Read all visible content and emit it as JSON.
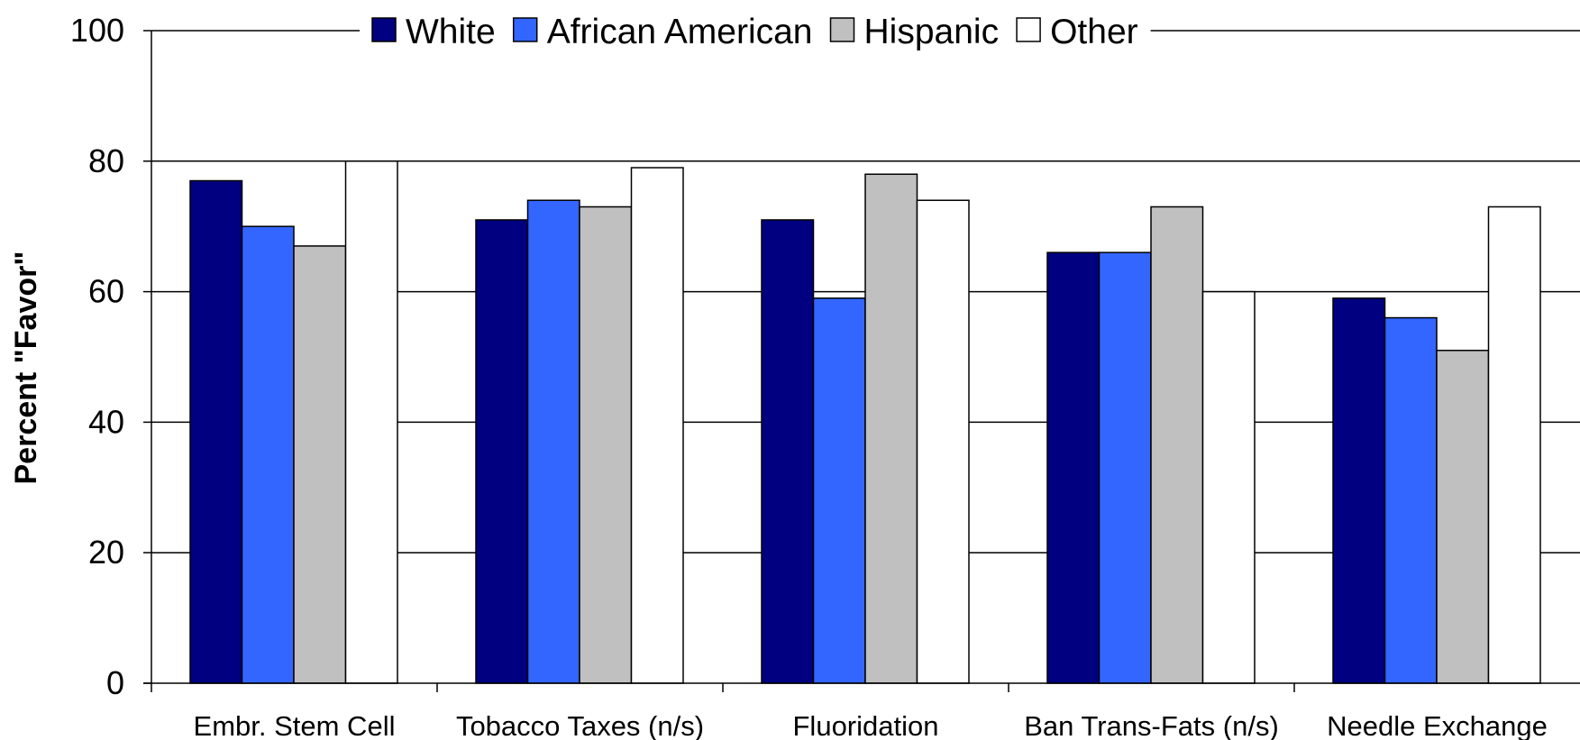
{
  "chart_data": {
    "type": "bar",
    "ylabel": "Percent \"Favor\"",
    "ylim": [
      0,
      100
    ],
    "yticks": [
      0,
      20,
      40,
      60,
      80,
      100
    ],
    "grid": true,
    "legend_position": "top",
    "categories": [
      "Embr. Stem Cell",
      "Tobacco Taxes (n/s)",
      "Fluoridation",
      "Ban Trans-Fats (n/s)",
      "Needle Exchange"
    ],
    "series": [
      {
        "name": "White",
        "color": "#000080",
        "values": [
          77,
          71,
          71,
          66,
          59
        ]
      },
      {
        "name": "African American",
        "color": "#3366FF",
        "values": [
          70,
          74,
          59,
          66,
          56
        ]
      },
      {
        "name": "Hispanic",
        "color": "#C0C0C0",
        "values": [
          67,
          73,
          78,
          73,
          51
        ]
      },
      {
        "name": "Other",
        "color": "#FFFFFF",
        "values": [
          80,
          79,
          74,
          60,
          73
        ]
      }
    ]
  }
}
